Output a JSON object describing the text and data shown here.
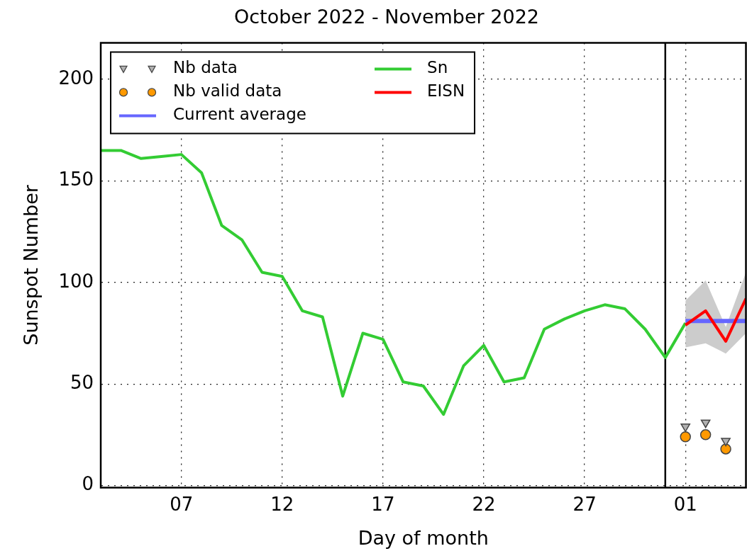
{
  "chart_data": {
    "type": "line",
    "title": "October 2022 - November 2022",
    "xlabel": "Day of month",
    "ylabel": "Sunspot Number",
    "xlim": [
      "--10-03",
      "--11-04"
    ],
    "xticks": [
      {
        "value": "--10-07",
        "label": "07"
      },
      {
        "value": "--10-12",
        "label": "12"
      },
      {
        "value": "--10-17",
        "label": "17"
      },
      {
        "value": "--10-22",
        "label": "22"
      },
      {
        "value": "--10-27",
        "label": "27"
      },
      {
        "value": "--11-01",
        "label": "01"
      }
    ],
    "ylim": [
      -1,
      218
    ],
    "yticks": [
      0,
      50,
      100,
      150,
      200
    ],
    "grid": true,
    "legend": "top left",
    "ref_lines": [
      {
        "axis": "x",
        "value": "--10-31",
        "color": "#000000"
      }
    ],
    "series": [
      {
        "name": "Nb data",
        "type": "scatter",
        "marker": "triangle",
        "color": "#b0b0b0",
        "x": [
          "--11-01",
          "--11-02",
          "--11-03"
        ],
        "values": [
          29,
          31,
          22
        ]
      },
      {
        "name": "Nb valid data",
        "type": "scatter",
        "marker": "circle",
        "color": "#ff9900",
        "x": [
          "--11-01",
          "--11-02",
          "--11-03"
        ],
        "values": [
          24,
          25,
          18
        ]
      },
      {
        "name": "Current average",
        "marker": "none",
        "color": "#6666ff",
        "x": [
          "--11-01",
          "--11-04"
        ],
        "values": [
          81,
          81
        ]
      },
      {
        "name": "Sn",
        "marker": "none",
        "color": "#33cc33",
        "x": [
          "--10-03",
          "--10-04",
          "--10-05",
          "--10-06",
          "--10-07",
          "--10-08",
          "--10-09",
          "--10-10",
          "--10-11",
          "--10-12",
          "--10-13",
          "--10-14",
          "--10-15",
          "--10-16",
          "--10-17",
          "--10-18",
          "--10-19",
          "--10-20",
          "--10-21",
          "--10-22",
          "--10-23",
          "--10-24",
          "--10-25",
          "--10-26",
          "--10-27",
          "--10-28",
          "--10-29",
          "--10-30",
          "--10-31",
          "--11-01"
        ],
        "values": [
          165,
          165,
          161,
          162,
          163,
          154,
          128,
          121,
          105,
          103,
          86,
          83,
          44,
          75,
          72,
          51,
          49,
          35,
          59,
          69,
          51,
          53,
          77,
          82,
          86,
          89,
          87,
          77,
          63,
          80
        ]
      },
      {
        "name": "EISN",
        "marker": "none",
        "color": "#ff0000",
        "x": [
          "--11-01",
          "--11-02",
          "--11-03",
          "--11-04"
        ],
        "values": [
          79,
          86,
          71,
          92
        ],
        "lower": [
          68,
          70,
          65,
          75
        ],
        "upper": [
          91,
          101,
          78,
          105
        ]
      }
    ]
  }
}
